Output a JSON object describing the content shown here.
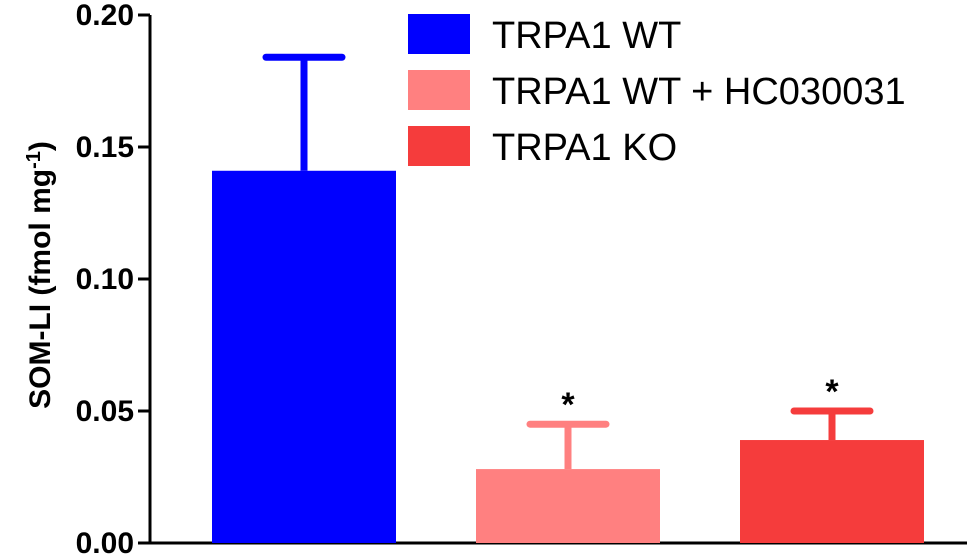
{
  "chart_data": {
    "type": "bar",
    "categories": [
      "TRPA1 WT",
      "TRPA1 WT + HC030031",
      "TRPA1 KO"
    ],
    "values": [
      0.141,
      0.028,
      0.039
    ],
    "errors": [
      0.043,
      0.017,
      0.011
    ],
    "significance": [
      "",
      "*",
      "*"
    ],
    "colors": [
      "#0000ff",
      "#ff8080",
      "#f53c3c"
    ],
    "ylabel": "SOM-LI (fmol mg",
    "ylabel_superscript": "-1",
    "ylabel_suffix": ")",
    "ylim": [
      0,
      0.2
    ],
    "yticks": [
      0.0,
      0.05,
      0.1,
      0.15,
      0.2
    ],
    "ytick_labels": [
      "0.00",
      "0.05",
      "0.10",
      "0.15",
      "0.20"
    ],
    "legend": [
      {
        "label": "TRPA1 WT",
        "color": "#0000ff"
      },
      {
        "label": "TRPA1 WT + HC030031",
        "color": "#ff8080"
      },
      {
        "label": "TRPA1 KO",
        "color": "#f53c3c"
      }
    ],
    "legend_position": "top-right",
    "grid": false
  }
}
